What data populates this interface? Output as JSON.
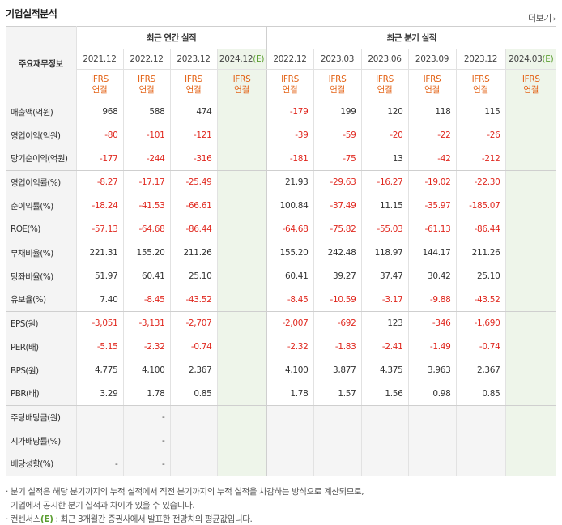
{
  "title": "기업실적분석",
  "more_label": "더보기",
  "header": {
    "row_header_label": "주요재무정보",
    "annual_label": "최근 연간 실적",
    "quarterly_label": "최근 분기 실적",
    "estimate_mark": "(E)",
    "annual_periods": [
      "2021.12",
      "2022.12",
      "2023.12",
      "2024.12"
    ],
    "quarterly_periods": [
      "2022.12",
      "2023.03",
      "2023.06",
      "2023.09",
      "2023.12",
      "2024.03"
    ],
    "ifrs_line1": "IFRS",
    "ifrs_line2": "연결"
  },
  "rows": [
    {
      "label": "매출액(억원)",
      "values": [
        "968",
        "588",
        "474",
        "",
        "-179",
        "199",
        "120",
        "118",
        "115",
        ""
      ]
    },
    {
      "label": "영업이익(억원)",
      "values": [
        "-80",
        "-101",
        "-121",
        "",
        "-39",
        "-59",
        "-20",
        "-22",
        "-26",
        ""
      ]
    },
    {
      "label": "당기순이익(억원)",
      "values": [
        "-177",
        "-244",
        "-316",
        "",
        "-181",
        "-75",
        "13",
        "-42",
        "-212",
        ""
      ]
    },
    {
      "label": "영업이익률(%)",
      "values": [
        "-8.27",
        "-17.17",
        "-25.49",
        "",
        "21.93",
        "-29.63",
        "-16.27",
        "-19.02",
        "-22.30",
        ""
      ]
    },
    {
      "label": "순이익률(%)",
      "values": [
        "-18.24",
        "-41.53",
        "-66.61",
        "",
        "100.84",
        "-37.49",
        "11.15",
        "-35.97",
        "-185.07",
        ""
      ]
    },
    {
      "label": "ROE(%)",
      "values": [
        "-57.13",
        "-64.68",
        "-86.44",
        "",
        "-64.68",
        "-75.82",
        "-55.03",
        "-61.13",
        "-86.44",
        ""
      ]
    },
    {
      "label": "부채비율(%)",
      "values": [
        "221.31",
        "155.20",
        "211.26",
        "",
        "155.20",
        "242.48",
        "118.97",
        "144.17",
        "211.26",
        ""
      ]
    },
    {
      "label": "당좌비율(%)",
      "values": [
        "51.97",
        "60.41",
        "25.10",
        "",
        "60.41",
        "39.27",
        "37.47",
        "30.42",
        "25.10",
        ""
      ]
    },
    {
      "label": "유보율(%)",
      "values": [
        "7.40",
        "-8.45",
        "-43.52",
        "",
        "-8.45",
        "-10.59",
        "-3.17",
        "-9.88",
        "-43.52",
        ""
      ]
    },
    {
      "label": "EPS(원)",
      "values": [
        "-3,051",
        "-3,131",
        "-2,707",
        "",
        "-2,007",
        "-692",
        "123",
        "-346",
        "-1,690",
        ""
      ]
    },
    {
      "label": "PER(배)",
      "values": [
        "-5.15",
        "-2.32",
        "-0.74",
        "",
        "-2.32",
        "-1.83",
        "-2.41",
        "-1.49",
        "-0.74",
        ""
      ]
    },
    {
      "label": "BPS(원)",
      "values": [
        "4,775",
        "4,100",
        "2,367",
        "",
        "4,100",
        "3,877",
        "4,375",
        "3,963",
        "2,367",
        ""
      ]
    },
    {
      "label": "PBR(배)",
      "values": [
        "3.29",
        "1.78",
        "0.85",
        "",
        "1.78",
        "1.57",
        "1.56",
        "0.98",
        "0.85",
        ""
      ]
    },
    {
      "label": "주당배당금(원)",
      "values": [
        "",
        "-",
        "",
        "",
        "",
        "",
        "",
        "",
        "",
        ""
      ]
    },
    {
      "label": "시가배당률(%)",
      "values": [
        "",
        "-",
        "",
        "",
        "",
        "",
        "",
        "",
        "",
        ""
      ]
    },
    {
      "label": "배당성향(%)",
      "values": [
        "-",
        "-",
        "",
        "",
        "",
        "",
        "",
        "",
        "",
        ""
      ]
    }
  ],
  "notes": {
    "line1": "· 분기 실적은 해당 분기까지의 누적 실적에서 직전 분기까지의 누적 실적을 차감하는 방식으로 계산되므로,",
    "line2": "  기업에서 공시한 분기 실적과 차이가 있을 수 있습니다.",
    "line3_pre": "· 컨센서스",
    "line3_mark": "(E)",
    "line3_post": " : 최근 3개월간 증권사에서 발표한 전망치의 평균값입니다."
  },
  "colors": {
    "negative": "#e0281f",
    "ifrs": "#e36317",
    "estimate": "#5b9e31",
    "estimate_bg": "#eef5ea"
  }
}
